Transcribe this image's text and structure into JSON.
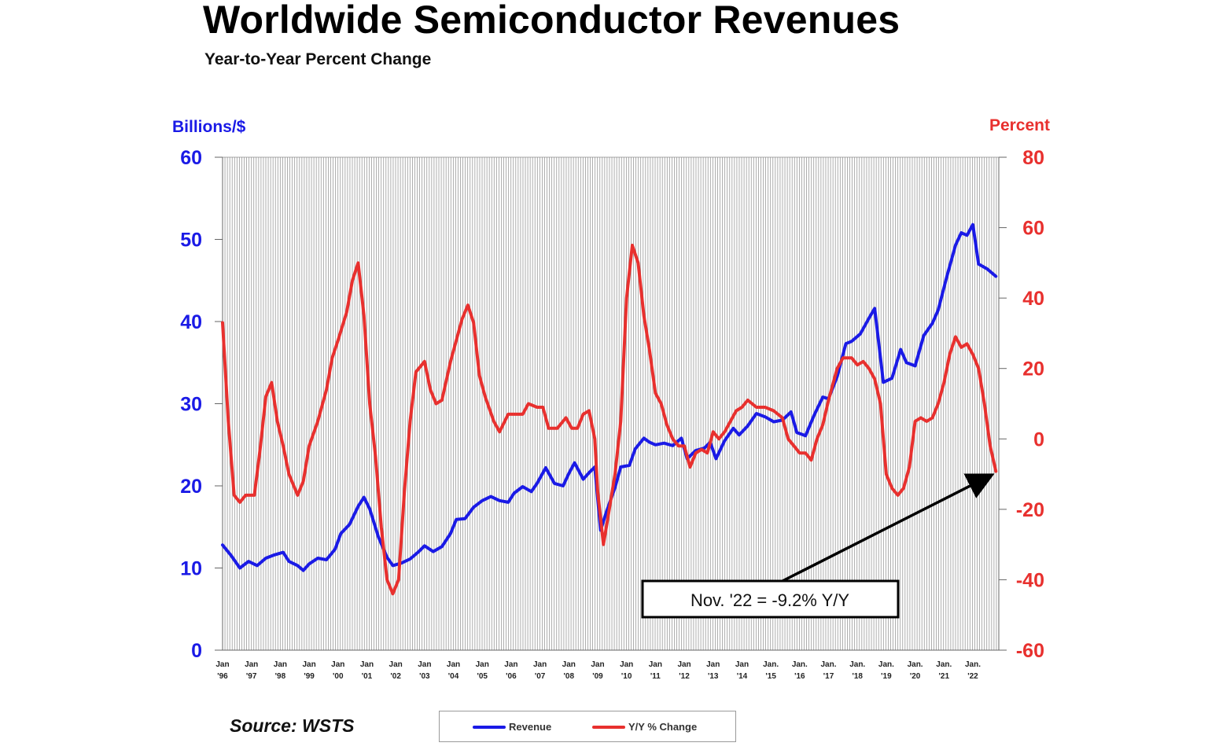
{
  "header": {
    "title": "Worldwide Semiconductor Revenues",
    "subtitle": "Year-to-Year Percent Change"
  },
  "source": "Source: WSTS",
  "annotation": {
    "text": "Nov. '22 = -9.2% Y/Y"
  },
  "colors": {
    "revenue": "#1a1ae6",
    "yoy": "#e8302e",
    "grid": "#9a9a9a",
    "arrow": "#000000"
  },
  "chart_data": {
    "type": "line",
    "title": "Worldwide Semiconductor Revenues",
    "subtitle": "Year-to-Year Percent Change",
    "x_range": [
      1996,
      2022.9
    ],
    "x_ticks": [
      {
        "x": 1996,
        "top": "Jan",
        "bottom": "'96"
      },
      {
        "x": 1997,
        "top": "Jan",
        "bottom": "'97"
      },
      {
        "x": 1998,
        "top": "Jan",
        "bottom": "'98"
      },
      {
        "x": 1999,
        "top": "Jan",
        "bottom": "'99"
      },
      {
        "x": 2000,
        "top": "Jan",
        "bottom": "'00"
      },
      {
        "x": 2001,
        "top": "Jan",
        "bottom": "'01"
      },
      {
        "x": 2002,
        "top": "Jan",
        "bottom": "'02"
      },
      {
        "x": 2003,
        "top": "Jan",
        "bottom": "'03"
      },
      {
        "x": 2004,
        "top": "Jan",
        "bottom": "'04"
      },
      {
        "x": 2005,
        "top": "Jan",
        "bottom": "'05"
      },
      {
        "x": 2006,
        "top": "Jan",
        "bottom": "'06"
      },
      {
        "x": 2007,
        "top": "Jan",
        "bottom": "'07"
      },
      {
        "x": 2008,
        "top": "Jan",
        "bottom": "'08"
      },
      {
        "x": 2009,
        "top": "Jan",
        "bottom": "'09"
      },
      {
        "x": 2010,
        "top": "Jan",
        "bottom": "'10"
      },
      {
        "x": 2011,
        "top": "Jan",
        "bottom": "'11"
      },
      {
        "x": 2012,
        "top": "Jan",
        "bottom": "'12"
      },
      {
        "x": 2013,
        "top": "Jan",
        "bottom": "'13"
      },
      {
        "x": 2014,
        "top": "Jan",
        "bottom": "'14"
      },
      {
        "x": 2015,
        "top": "Jan.",
        "bottom": "'15"
      },
      {
        "x": 2016,
        "top": "Jan.",
        "bottom": "'16"
      },
      {
        "x": 2017,
        "top": "Jan.",
        "bottom": "'17"
      },
      {
        "x": 2018,
        "top": "Jan.",
        "bottom": "'18"
      },
      {
        "x": 2019,
        "top": "Jan.",
        "bottom": "'19"
      },
      {
        "x": 2020,
        "top": "Jan.",
        "bottom": "'20"
      },
      {
        "x": 2021,
        "top": "Jan.",
        "bottom": "'21"
      },
      {
        "x": 2022,
        "top": "Jan.",
        "bottom": "'22"
      }
    ],
    "y_left": {
      "label": "Billions/$",
      "min": 0,
      "max": 60,
      "ticks": [
        0,
        10,
        20,
        30,
        40,
        50,
        60
      ]
    },
    "y_right": {
      "label": "Percent",
      "min": -60,
      "max": 80,
      "ticks": [
        -60,
        -40,
        -20,
        0,
        20,
        40,
        60,
        80
      ]
    },
    "grid": "vertical",
    "legend_position": "bottom-center",
    "series": [
      {
        "name": "Revenue",
        "axis": "left",
        "points": [
          [
            1996.0,
            12.8
          ],
          [
            1996.3,
            11.5
          ],
          [
            1996.6,
            10.0
          ],
          [
            1996.9,
            10.8
          ],
          [
            1997.2,
            10.3
          ],
          [
            1997.5,
            11.2
          ],
          [
            1997.8,
            11.6
          ],
          [
            1998.1,
            11.9
          ],
          [
            1998.3,
            10.8
          ],
          [
            1998.6,
            10.3
          ],
          [
            1998.8,
            9.7
          ],
          [
            1999.0,
            10.5
          ],
          [
            1999.3,
            11.2
          ],
          [
            1999.6,
            11.0
          ],
          [
            1999.9,
            12.3
          ],
          [
            2000.1,
            14.2
          ],
          [
            2000.4,
            15.3
          ],
          [
            2000.7,
            17.5
          ],
          [
            2000.9,
            18.6
          ],
          [
            2001.1,
            17.2
          ],
          [
            2001.4,
            13.8
          ],
          [
            2001.7,
            11.3
          ],
          [
            2001.9,
            10.3
          ],
          [
            2002.2,
            10.6
          ],
          [
            2002.5,
            11.1
          ],
          [
            2002.8,
            12.0
          ],
          [
            2003.0,
            12.7
          ],
          [
            2003.3,
            12.0
          ],
          [
            2003.6,
            12.6
          ],
          [
            2003.9,
            14.2
          ],
          [
            2004.1,
            15.9
          ],
          [
            2004.4,
            16.0
          ],
          [
            2004.7,
            17.4
          ],
          [
            2005.0,
            18.2
          ],
          [
            2005.3,
            18.7
          ],
          [
            2005.6,
            18.2
          ],
          [
            2005.9,
            18.0
          ],
          [
            2006.1,
            19.1
          ],
          [
            2006.4,
            19.9
          ],
          [
            2006.7,
            19.3
          ],
          [
            2006.9,
            20.3
          ],
          [
            2007.2,
            22.2
          ],
          [
            2007.5,
            20.3
          ],
          [
            2007.8,
            20.0
          ],
          [
            2008.0,
            21.5
          ],
          [
            2008.2,
            22.8
          ],
          [
            2008.5,
            20.8
          ],
          [
            2008.7,
            21.6
          ],
          [
            2008.9,
            22.3
          ],
          [
            2009.1,
            14.6
          ],
          [
            2009.3,
            16.8
          ],
          [
            2009.6,
            19.8
          ],
          [
            2009.8,
            22.3
          ],
          [
            2010.1,
            22.5
          ],
          [
            2010.3,
            24.5
          ],
          [
            2010.6,
            25.8
          ],
          [
            2010.8,
            25.3
          ],
          [
            2011.0,
            25.0
          ],
          [
            2011.3,
            25.2
          ],
          [
            2011.6,
            24.9
          ],
          [
            2011.9,
            25.8
          ],
          [
            2012.1,
            23.3
          ],
          [
            2012.4,
            24.3
          ],
          [
            2012.7,
            24.6
          ],
          [
            2012.9,
            25.3
          ],
          [
            2013.1,
            23.3
          ],
          [
            2013.4,
            25.5
          ],
          [
            2013.7,
            27.0
          ],
          [
            2013.9,
            26.2
          ],
          [
            2014.2,
            27.3
          ],
          [
            2014.5,
            28.8
          ],
          [
            2014.8,
            28.4
          ],
          [
            2015.1,
            27.8
          ],
          [
            2015.4,
            28.0
          ],
          [
            2015.7,
            29.0
          ],
          [
            2015.9,
            26.5
          ],
          [
            2016.2,
            26.1
          ],
          [
            2016.5,
            28.6
          ],
          [
            2016.8,
            30.8
          ],
          [
            2017.0,
            30.6
          ],
          [
            2017.3,
            33.3
          ],
          [
            2017.6,
            37.3
          ],
          [
            2017.8,
            37.6
          ],
          [
            2018.1,
            38.5
          ],
          [
            2018.4,
            40.4
          ],
          [
            2018.6,
            41.6
          ],
          [
            2018.9,
            32.6
          ],
          [
            2019.2,
            33.1
          ],
          [
            2019.5,
            36.6
          ],
          [
            2019.7,
            35.0
          ],
          [
            2020.0,
            34.6
          ],
          [
            2020.3,
            38.3
          ],
          [
            2020.6,
            39.8
          ],
          [
            2020.8,
            41.4
          ],
          [
            2021.1,
            45.5
          ],
          [
            2021.4,
            49.3
          ],
          [
            2021.6,
            50.8
          ],
          [
            2021.8,
            50.5
          ],
          [
            2022.0,
            51.8
          ],
          [
            2022.2,
            47.0
          ],
          [
            2022.5,
            46.4
          ],
          [
            2022.8,
            45.5
          ]
        ]
      },
      {
        "name": "Y/Y % Change",
        "axis": "right",
        "points": [
          [
            1996.0,
            33
          ],
          [
            1996.2,
            5
          ],
          [
            1996.4,
            -16
          ],
          [
            1996.6,
            -18
          ],
          [
            1996.8,
            -16
          ],
          [
            1997.1,
            -16
          ],
          [
            1997.3,
            -3
          ],
          [
            1997.5,
            12
          ],
          [
            1997.7,
            16
          ],
          [
            1997.9,
            5
          ],
          [
            1998.1,
            -2
          ],
          [
            1998.3,
            -10
          ],
          [
            1998.6,
            -16
          ],
          [
            1998.8,
            -12
          ],
          [
            1999.0,
            -2
          ],
          [
            1999.3,
            5
          ],
          [
            1999.6,
            14
          ],
          [
            1999.8,
            23
          ],
          [
            2000.0,
            28
          ],
          [
            2000.3,
            36
          ],
          [
            2000.5,
            45
          ],
          [
            2000.7,
            50
          ],
          [
            2000.9,
            35
          ],
          [
            2001.1,
            10
          ],
          [
            2001.3,
            -5
          ],
          [
            2001.5,
            -25
          ],
          [
            2001.7,
            -40
          ],
          [
            2001.9,
            -44
          ],
          [
            2002.1,
            -40
          ],
          [
            2002.3,
            -15
          ],
          [
            2002.5,
            5
          ],
          [
            2002.7,
            19
          ],
          [
            2003.0,
            22
          ],
          [
            2003.2,
            14
          ],
          [
            2003.4,
            10
          ],
          [
            2003.6,
            11
          ],
          [
            2003.9,
            22
          ],
          [
            2004.1,
            28
          ],
          [
            2004.3,
            34
          ],
          [
            2004.5,
            38
          ],
          [
            2004.7,
            33
          ],
          [
            2004.9,
            18
          ],
          [
            2005.1,
            12
          ],
          [
            2005.4,
            5
          ],
          [
            2005.6,
            2
          ],
          [
            2005.9,
            7
          ],
          [
            2006.1,
            7
          ],
          [
            2006.4,
            7
          ],
          [
            2006.6,
            10
          ],
          [
            2006.9,
            9
          ],
          [
            2007.1,
            9
          ],
          [
            2007.3,
            3
          ],
          [
            2007.6,
            3
          ],
          [
            2007.9,
            6
          ],
          [
            2008.1,
            3
          ],
          [
            2008.3,
            3
          ],
          [
            2008.5,
            7
          ],
          [
            2008.7,
            8
          ],
          [
            2008.9,
            0
          ],
          [
            2009.0,
            -15
          ],
          [
            2009.2,
            -30
          ],
          [
            2009.4,
            -20
          ],
          [
            2009.6,
            -10
          ],
          [
            2009.8,
            5
          ],
          [
            2010.0,
            40
          ],
          [
            2010.2,
            55
          ],
          [
            2010.4,
            50
          ],
          [
            2010.6,
            35
          ],
          [
            2010.8,
            25
          ],
          [
            2011.0,
            13
          ],
          [
            2011.2,
            10
          ],
          [
            2011.4,
            4
          ],
          [
            2011.6,
            0
          ],
          [
            2011.8,
            -2
          ],
          [
            2012.0,
            -2
          ],
          [
            2012.2,
            -8
          ],
          [
            2012.4,
            -4
          ],
          [
            2012.6,
            -3
          ],
          [
            2012.8,
            -4
          ],
          [
            2013.0,
            2
          ],
          [
            2013.2,
            0
          ],
          [
            2013.4,
            2
          ],
          [
            2013.6,
            5
          ],
          [
            2013.8,
            8
          ],
          [
            2014.0,
            9
          ],
          [
            2014.2,
            11
          ],
          [
            2014.5,
            9
          ],
          [
            2014.8,
            9
          ],
          [
            2015.1,
            8
          ],
          [
            2015.4,
            6
          ],
          [
            2015.6,
            0
          ],
          [
            2015.8,
            -2
          ],
          [
            2016.0,
            -4
          ],
          [
            2016.2,
            -4
          ],
          [
            2016.4,
            -6
          ],
          [
            2016.6,
            0
          ],
          [
            2016.8,
            4
          ],
          [
            2017.0,
            11
          ],
          [
            2017.3,
            20
          ],
          [
            2017.5,
            23
          ],
          [
            2017.8,
            23
          ],
          [
            2018.0,
            21
          ],
          [
            2018.2,
            22
          ],
          [
            2018.4,
            20
          ],
          [
            2018.6,
            17
          ],
          [
            2018.8,
            10
          ],
          [
            2019.0,
            -10
          ],
          [
            2019.2,
            -14
          ],
          [
            2019.4,
            -16
          ],
          [
            2019.6,
            -14
          ],
          [
            2019.8,
            -8
          ],
          [
            2020.0,
            5
          ],
          [
            2020.2,
            6
          ],
          [
            2020.4,
            5
          ],
          [
            2020.6,
            6
          ],
          [
            2020.8,
            10
          ],
          [
            2021.0,
            16
          ],
          [
            2021.2,
            24
          ],
          [
            2021.4,
            29
          ],
          [
            2021.6,
            26
          ],
          [
            2021.8,
            27
          ],
          [
            2022.0,
            24
          ],
          [
            2022.2,
            20
          ],
          [
            2022.4,
            10
          ],
          [
            2022.6,
            -2
          ],
          [
            2022.8,
            -9.2
          ]
        ]
      }
    ]
  }
}
